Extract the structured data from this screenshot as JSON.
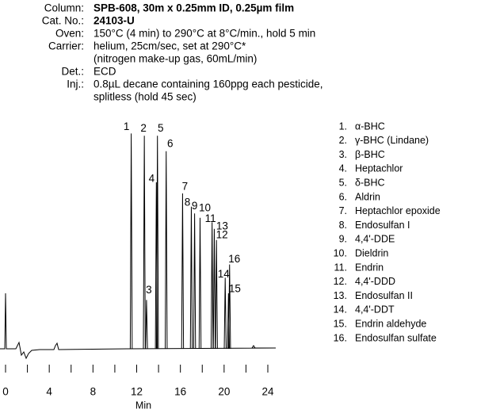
{
  "header": {
    "rows": [
      {
        "label": "Column:",
        "lines": [
          "SPB-608, 30m x 0.25mm ID, 0.25µm film"
        ]
      },
      {
        "label": "Cat. No.:",
        "lines": [
          "24103-U"
        ]
      },
      {
        "label": "Oven:",
        "lines": [
          "150°C (4 min) to 290°C at 8°C/min., hold 5 min"
        ]
      },
      {
        "label": "Carrier:",
        "lines": [
          "helium, 25cm/sec, set at 290°C*",
          "(nitrogen make-up gas, 60mL/min)"
        ]
      },
      {
        "label": "Det.:",
        "lines": [
          "ECD"
        ]
      },
      {
        "label": "Inj.:",
        "lines": [
          "0.8µL decane containing 160ppg each pesticide,",
          "splitless (hold 45 sec)"
        ]
      }
    ]
  },
  "chart_data": {
    "type": "chromatogram",
    "x_label": "Min",
    "xlim": [
      -0.5,
      25
    ],
    "xticks": [
      0,
      4,
      8,
      12,
      16,
      20,
      24
    ],
    "ylim": [
      0,
      100
    ],
    "color": "#000000",
    "peaks": {
      "labels": [
        "1",
        "2",
        "3",
        "4",
        "5",
        "6",
        "7",
        "8",
        "9",
        "10",
        "11",
        "12",
        "13",
        "14",
        "15",
        "16"
      ],
      "x": [
        11.5,
        12.7,
        12.9,
        13.8,
        13.9,
        14.7,
        16.2,
        17.0,
        17.3,
        17.8,
        18.9,
        19.3,
        19.1,
        20.1,
        20.4,
        20.5
      ],
      "values": [
        97,
        96,
        22,
        75,
        96,
        89,
        70,
        64,
        61,
        59,
        57,
        49,
        54,
        32,
        25,
        38
      ]
    },
    "legend": {
      "numbers": [
        "1.",
        "2.",
        "3.",
        "4.",
        "5.",
        "6.",
        "7.",
        "8.",
        "9.",
        "10.",
        "11.",
        "12.",
        "13.",
        "14.",
        "15.",
        "16."
      ],
      "names": [
        "α-BHC",
        "γ-BHC (Lindane)",
        "β-BHC",
        "Heptachlor",
        "δ-BHC",
        "Aldrin",
        "Heptachlor epoxide",
        "Endosulfan I",
        "4,4'-DDE",
        "Dieldrin",
        "Endrin",
        "4,4'-DDD",
        "Endosulfan II",
        "4,4'-DDT",
        "Endrin aldehyde",
        "Endosulfan sulfate"
      ]
    }
  }
}
